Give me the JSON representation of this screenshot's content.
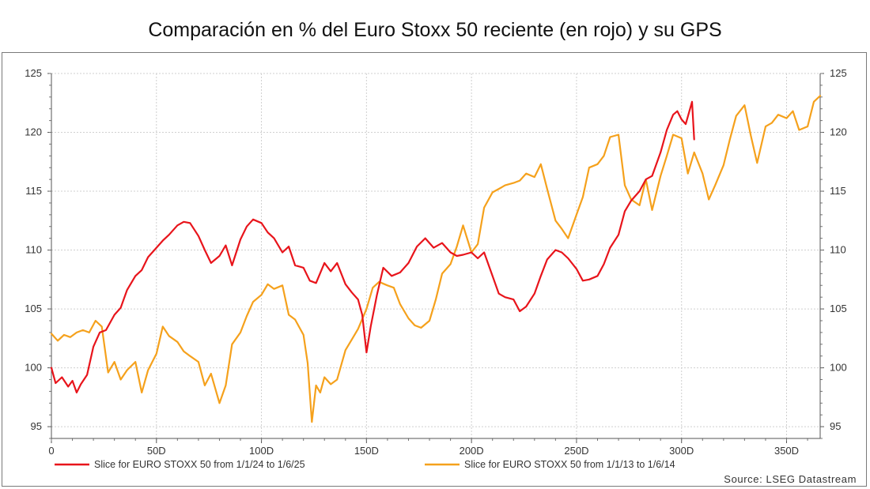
{
  "title": "Comparación en % del Euro Stoxx 50 reciente (en rojo) y su GPS",
  "source": "Source: LSEG Datastream",
  "chart_data": {
    "type": "line",
    "title": "Comparación en % del Euro Stoxx 50 reciente (en rojo) y su GPS",
    "xlabel": "",
    "ylabel": "",
    "xlim": [
      0,
      366
    ],
    "ylim": [
      94,
      125
    ],
    "x_ticks": [
      0,
      50,
      100,
      150,
      200,
      250,
      300,
      350
    ],
    "x_tick_labels": [
      "0",
      "50D",
      "100D",
      "150D",
      "200D",
      "250D",
      "300D",
      "350D"
    ],
    "y_ticks": [
      95,
      100,
      105,
      110,
      115,
      120,
      125
    ],
    "y_tick_labels": [
      "95",
      "100",
      "105",
      "110",
      "115",
      "120",
      "125"
    ],
    "y_axis_sides": [
      "left",
      "right"
    ],
    "grid": true,
    "legend_position": "bottom",
    "series": [
      {
        "name": "Slice for EURO STOXX 50 from 1/1/24 to 1/6/25",
        "color": "#e8141b",
        "x": [
          0,
          2,
          5,
          8,
          10,
          12,
          14,
          17,
          20,
          23,
          26,
          30,
          33,
          36,
          40,
          43,
          46,
          50,
          53,
          56,
          60,
          63,
          66,
          70,
          73,
          76,
          80,
          83,
          86,
          90,
          93,
          96,
          100,
          103,
          106,
          110,
          113,
          116,
          120,
          123,
          126,
          130,
          133,
          136,
          140,
          143,
          146,
          148,
          150,
          152,
          155,
          158,
          162,
          166,
          170,
          174,
          178,
          182,
          186,
          190,
          193,
          196,
          200,
          203,
          206,
          210,
          213,
          216,
          220,
          223,
          226,
          230,
          233,
          236,
          240,
          243,
          246,
          250,
          253,
          256,
          260,
          263,
          266,
          270,
          273,
          276,
          280,
          283,
          286,
          290,
          293,
          296,
          298,
          300,
          302,
          305,
          306
        ],
        "values": [
          100.0,
          98.7,
          99.2,
          98.4,
          98.9,
          97.9,
          98.6,
          99.4,
          101.8,
          103.0,
          103.2,
          104.5,
          105.1,
          106.6,
          107.8,
          108.3,
          109.4,
          110.2,
          110.8,
          111.3,
          112.1,
          112.4,
          112.3,
          111.2,
          110.0,
          108.9,
          109.5,
          110.4,
          108.7,
          110.9,
          112.0,
          112.6,
          112.3,
          111.5,
          111.0,
          109.8,
          110.3,
          108.7,
          108.5,
          107.4,
          107.2,
          108.9,
          108.2,
          108.9,
          107.1,
          106.4,
          105.8,
          104.5,
          101.3,
          103.5,
          106.2,
          108.5,
          107.8,
          108.1,
          108.9,
          110.3,
          111.0,
          110.2,
          110.6,
          109.8,
          109.5,
          109.6,
          109.8,
          109.3,
          109.8,
          107.8,
          106.3,
          106.0,
          105.8,
          104.8,
          105.2,
          106.3,
          107.8,
          109.2,
          110.0,
          109.8,
          109.3,
          108.4,
          107.4,
          107.5,
          107.8,
          108.8,
          110.2,
          111.3,
          113.3,
          114.2,
          115.0,
          116.0,
          116.3,
          118.3,
          120.2,
          121.5,
          121.8,
          121.1,
          120.7,
          122.6,
          119.4
        ]
      },
      {
        "name": "Slice for EURO STOXX 50 from 1/1/13 to 1/6/14",
        "color": "#f5a11c",
        "x": [
          0,
          3,
          6,
          9,
          12,
          15,
          18,
          21,
          24,
          27,
          30,
          33,
          36,
          40,
          43,
          46,
          50,
          53,
          56,
          60,
          63,
          66,
          70,
          73,
          76,
          80,
          83,
          86,
          90,
          93,
          96,
          100,
          103,
          106,
          110,
          113,
          116,
          120,
          122,
          124,
          126,
          128,
          130,
          133,
          136,
          140,
          143,
          146,
          150,
          153,
          156,
          160,
          163,
          166,
          170,
          173,
          176,
          180,
          183,
          186,
          190,
          193,
          196,
          200,
          203,
          206,
          210,
          213,
          216,
          220,
          223,
          226,
          230,
          233,
          236,
          240,
          243,
          246,
          250,
          253,
          256,
          260,
          263,
          266,
          270,
          273,
          276,
          280,
          283,
          286,
          290,
          293,
          296,
          300,
          303,
          306,
          310,
          313,
          316,
          320,
          323,
          326,
          330,
          333,
          336,
          340,
          343,
          346,
          350,
          353,
          356,
          360,
          363,
          366
        ],
        "values": [
          102.9,
          102.3,
          102.8,
          102.6,
          103.0,
          103.2,
          103.0,
          104.0,
          103.5,
          99.6,
          100.5,
          99.0,
          99.8,
          100.5,
          97.9,
          99.8,
          101.2,
          103.5,
          102.7,
          102.2,
          101.4,
          101.0,
          100.5,
          98.5,
          99.5,
          97.0,
          98.5,
          102.0,
          103.0,
          104.4,
          105.6,
          106.2,
          107.1,
          106.7,
          107.0,
          104.5,
          104.1,
          102.8,
          100.4,
          95.4,
          98.5,
          97.9,
          99.2,
          98.6,
          99.0,
          101.5,
          102.4,
          103.3,
          105.0,
          106.8,
          107.3,
          107.0,
          106.8,
          105.4,
          104.2,
          103.6,
          103.4,
          104.0,
          105.8,
          108.0,
          108.8,
          110.3,
          112.1,
          109.8,
          110.5,
          113.6,
          114.9,
          115.2,
          115.5,
          115.7,
          115.9,
          116.5,
          116.2,
          117.3,
          115.2,
          112.5,
          111.8,
          111.0,
          113.0,
          114.5,
          117.0,
          117.3,
          118.0,
          119.6,
          119.8,
          115.5,
          114.3,
          113.8,
          116.0,
          113.4,
          116.3,
          118.0,
          119.8,
          119.5,
          116.5,
          118.3,
          116.5,
          114.3,
          115.5,
          117.2,
          119.4,
          121.4,
          122.3,
          119.7,
          117.4,
          120.5,
          120.8,
          121.5,
          121.2,
          121.8,
          120.2,
          120.5,
          122.6,
          123.1
        ]
      }
    ]
  }
}
